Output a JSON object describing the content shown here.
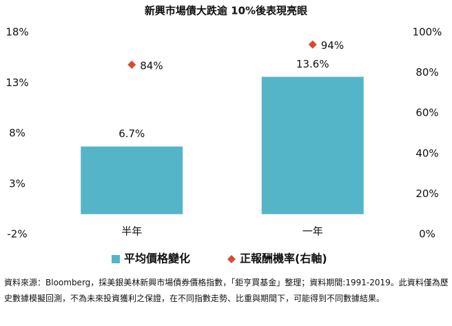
{
  "chart_data": {
    "type": "bar",
    "title": "新興市場債大跌逾 10%後表現亮眼",
    "categories": [
      "半年",
      "一年"
    ],
    "series": [
      {
        "name": "平均價格變化",
        "color": "#55b5c8",
        "type": "bar",
        "values": [
          6.7,
          13.6
        ],
        "value_labels": [
          "6.7%",
          "13.6%"
        ]
      },
      {
        "name": "正報酬機率(右軸)",
        "color": "#d84a2e",
        "type": "scatter",
        "axis": "y2",
        "values": [
          84,
          94
        ],
        "value_labels": [
          "84%",
          "94%"
        ]
      }
    ],
    "ylim": [
      -2,
      18
    ],
    "yticks": [
      {
        "value": -2,
        "label": "-2%"
      },
      {
        "value": 3,
        "label": "3%"
      },
      {
        "value": 8,
        "label": "8%"
      },
      {
        "value": 13,
        "label": "13%"
      },
      {
        "value": 18,
        "label": "18%"
      }
    ],
    "y2lim": [
      0,
      100
    ],
    "y2ticks": [
      {
        "value": 0,
        "label": "0%"
      },
      {
        "value": 20,
        "label": "20%"
      },
      {
        "value": 40,
        "label": "40%"
      },
      {
        "value": 60,
        "label": "60%"
      },
      {
        "value": 80,
        "label": "80%"
      },
      {
        "value": 100,
        "label": "100%"
      }
    ],
    "grid": false,
    "legend": "bottom",
    "note": "資料來源：Bloomberg，採美銀美林新興市場債券價格指數，「鉅亨買基金」整理；資料期間:1991-2019。此資料僅為歷史數據模擬回測，不為未來投資獲利之保證，在不同指數走勢、比重與期間下，可能得到不同數據結果。"
  }
}
